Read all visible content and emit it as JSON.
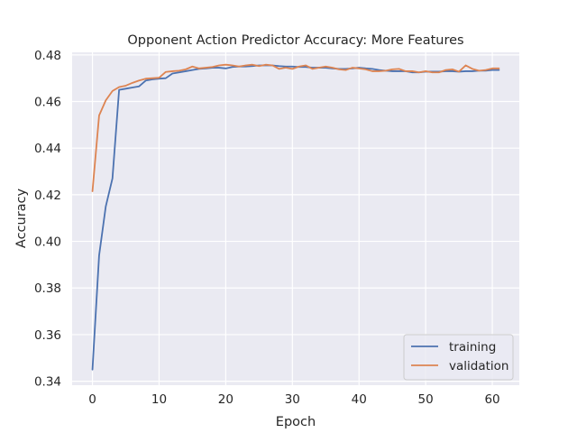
{
  "chart_data": {
    "type": "line",
    "title": "Opponent Action Predictor Accuracy: More Features",
    "xlabel": "Epoch",
    "ylabel": "Accuracy",
    "xlim": [
      -3.05,
      64.05
    ],
    "ylim": [
      0.3383,
      0.4811
    ],
    "xticks": [
      0,
      10,
      20,
      30,
      40,
      50,
      60
    ],
    "xtick_labels": [
      "0",
      "10",
      "20",
      "30",
      "40",
      "50",
      "60"
    ],
    "yticks": [
      0.34,
      0.36,
      0.38,
      0.4,
      0.42,
      0.44,
      0.46,
      0.48
    ],
    "ytick_labels": [
      "0.34",
      "0.36",
      "0.38",
      "0.40",
      "0.42",
      "0.44",
      "0.46",
      "0.48"
    ],
    "grid": true,
    "legend_position": "lower-right",
    "x": [
      0,
      1,
      2,
      3,
      4,
      5,
      6,
      7,
      8,
      9,
      10,
      11,
      12,
      13,
      14,
      15,
      16,
      17,
      18,
      19,
      20,
      21,
      22,
      23,
      24,
      25,
      26,
      27,
      28,
      29,
      30,
      31,
      32,
      33,
      34,
      35,
      36,
      37,
      38,
      39,
      40,
      41,
      42,
      43,
      44,
      45,
      46,
      47,
      48,
      49,
      50,
      51,
      52,
      53,
      54,
      55,
      56,
      57,
      58,
      59,
      60,
      61
    ],
    "series": [
      {
        "name": "training",
        "color": "#4c72b0",
        "values": [
          0.345,
          0.394,
          0.415,
          0.427,
          0.465,
          0.4655,
          0.466,
          0.4665,
          0.469,
          0.4695,
          0.4698,
          0.47,
          0.472,
          0.4725,
          0.473,
          0.4735,
          0.474,
          0.4742,
          0.4745,
          0.4745,
          0.4742,
          0.4748,
          0.475,
          0.475,
          0.4752,
          0.4755,
          0.4755,
          0.4755,
          0.4752,
          0.475,
          0.475,
          0.4748,
          0.4748,
          0.4745,
          0.4745,
          0.4745,
          0.4742,
          0.474,
          0.474,
          0.4742,
          0.4745,
          0.4742,
          0.474,
          0.4735,
          0.4732,
          0.473,
          0.473,
          0.473,
          0.4725,
          0.4725,
          0.4728,
          0.4728,
          0.4728,
          0.473,
          0.473,
          0.4728,
          0.473,
          0.473,
          0.4732,
          0.4732,
          0.4735,
          0.4735
        ]
      },
      {
        "name": "validation",
        "color": "#dd8452",
        "values": [
          0.4215,
          0.454,
          0.4605,
          0.4645,
          0.4662,
          0.4668,
          0.468,
          0.469,
          0.4698,
          0.47,
          0.4702,
          0.4727,
          0.473,
          0.4732,
          0.4738,
          0.475,
          0.4742,
          0.4745,
          0.4748,
          0.4755,
          0.4758,
          0.4755,
          0.475,
          0.4755,
          0.4758,
          0.4752,
          0.4758,
          0.4755,
          0.474,
          0.4745,
          0.474,
          0.475,
          0.4755,
          0.474,
          0.4745,
          0.475,
          0.4745,
          0.4738,
          0.4735,
          0.4745,
          0.4742,
          0.4738,
          0.473,
          0.473,
          0.4732,
          0.4738,
          0.474,
          0.473,
          0.473,
          0.4725,
          0.473,
          0.4725,
          0.4725,
          0.4735,
          0.4738,
          0.4728,
          0.4755,
          0.474,
          0.4732,
          0.4735,
          0.4742,
          0.4742
        ]
      }
    ],
    "style": {
      "axes_bg": "#eaeaf2",
      "grid_color": "#ffffff",
      "text_color": "#262626"
    }
  }
}
